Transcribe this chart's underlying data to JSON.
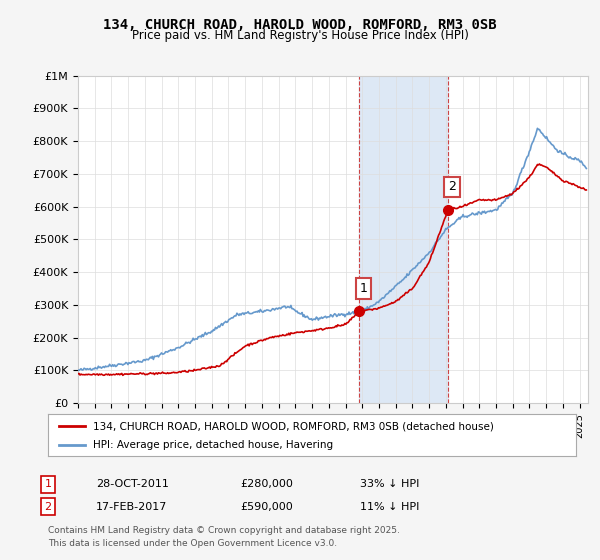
{
  "title": "134, CHURCH ROAD, HAROLD WOOD, ROMFORD, RM3 0SB",
  "subtitle": "Price paid vs. HM Land Registry's House Price Index (HPI)",
  "ylabel_ticks": [
    "£0",
    "£100K",
    "£200K",
    "£300K",
    "£400K",
    "£500K",
    "£600K",
    "£700K",
    "£800K",
    "£900K",
    "£1M"
  ],
  "ytick_vals": [
    0,
    100000,
    200000,
    300000,
    400000,
    500000,
    600000,
    700000,
    800000,
    900000,
    1000000
  ],
  "ylim": [
    0,
    1000000
  ],
  "xlim_start": 1995.0,
  "xlim_end": 2025.5,
  "marker1_x": 2011.83,
  "marker1_y": 280000,
  "marker1_label": "1",
  "marker2_x": 2017.12,
  "marker2_y": 590000,
  "marker2_label": "2",
  "shade_x1": 2011.83,
  "shade_x2": 2017.12,
  "red_color": "#cc0000",
  "blue_color": "#6699cc",
  "shade_color": "#dde8f5",
  "legend_line1": "134, CHURCH ROAD, HAROLD WOOD, ROMFORD, RM3 0SB (detached house)",
  "legend_line2": "HPI: Average price, detached house, Havering",
  "note1_label": "1",
  "note1_date": "28-OCT-2011",
  "note1_price": "£280,000",
  "note1_hpi": "33% ↓ HPI",
  "note2_label": "2",
  "note2_date": "17-FEB-2017",
  "note2_price": "£590,000",
  "note2_hpi": "11% ↓ HPI",
  "footer": "Contains HM Land Registry data © Crown copyright and database right 2025.\nThis data is licensed under the Open Government Licence v3.0.",
  "bg_color": "#f5f5f5",
  "plot_bg_color": "#ffffff",
  "hpi_key_x": [
    1995.0,
    1997.0,
    1999.0,
    2001.0,
    2003.0,
    2004.5,
    2006.0,
    2007.5,
    2009.0,
    2010.0,
    2012.0,
    2013.0,
    2014.5,
    2016.0,
    2017.0,
    2018.0,
    2019.0,
    2020.0,
    2021.0,
    2022.0,
    2022.5,
    2023.0,
    2023.5,
    2024.0,
    2024.5,
    2025.0,
    2025.4
  ],
  "hpi_key_y": [
    100000,
    115000,
    130000,
    170000,
    220000,
    270000,
    280000,
    295000,
    255000,
    265000,
    280000,
    310000,
    380000,
    460000,
    530000,
    570000,
    580000,
    590000,
    640000,
    770000,
    840000,
    810000,
    780000,
    760000,
    750000,
    740000,
    720000
  ],
  "red_key_x": [
    1995.0,
    1997.0,
    1999.0,
    2000.5,
    2002.0,
    2003.5,
    2005.0,
    2006.5,
    2008.0,
    2009.5,
    2011.0,
    2011.83,
    2013.0,
    2014.0,
    2015.0,
    2016.0,
    2017.12,
    2018.0,
    2019.0,
    2020.0,
    2021.0,
    2022.0,
    2022.5,
    2023.0,
    2023.5,
    2024.0,
    2024.5,
    2025.0,
    2025.4
  ],
  "red_key_y": [
    88000,
    88000,
    90000,
    92000,
    100000,
    115000,
    175000,
    200000,
    215000,
    225000,
    240000,
    280000,
    290000,
    310000,
    350000,
    430000,
    590000,
    600000,
    620000,
    620000,
    640000,
    690000,
    730000,
    720000,
    700000,
    680000,
    670000,
    660000,
    650000
  ]
}
